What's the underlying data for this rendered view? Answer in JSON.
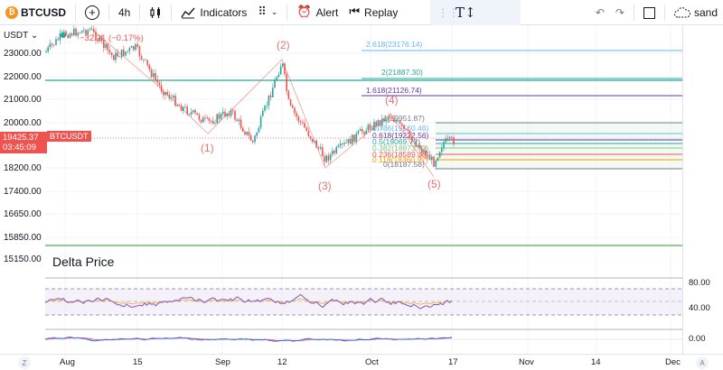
{
  "toolbar": {
    "symbol": "BTCUSD",
    "symbol_icon_letter": "₿",
    "interval": "4h",
    "indicators_label": "Indicators",
    "alert_label": "Alert",
    "replay_label": "Replay",
    "user_label": "sand"
  },
  "price_scale": {
    "currency": "USDT",
    "labels": [
      "23000.00",
      "22000.00",
      "21000.00",
      "20000.00",
      "18200.00",
      "17400.00",
      "16650.00",
      "15850.00",
      "15150.00"
    ],
    "current_price": "19425.37",
    "countdown": "03:45:09",
    "ticker_badge": "BTCUSDT"
  },
  "rsi_scale": {
    "top": "80.00",
    "mid": "40.00"
  },
  "macd_scale": {
    "zero": "0.00"
  },
  "chart": {
    "title": "Delta Price",
    "change_label": "−32.21 (−0.17%)",
    "wave_labels": [
      "(1)",
      "(2)",
      "(3)",
      "(4)",
      "(5)"
    ],
    "fib_labels": [
      {
        "text": "2.618(23176.14)",
        "color": "#64b5f6"
      },
      {
        "text": "2(21887.30)",
        "color": "#26a69a"
      },
      {
        "text": "1.618(21126.74)",
        "color": "#5e35b1"
      },
      {
        "text": "1(19951.87)",
        "color": "#787b86"
      },
      {
        "text": "0.786(19560.46)",
        "color": "#64b5f6"
      },
      {
        "text": "0.618(19222.56)",
        "color": "#5e35b1"
      },
      {
        "text": "0.5(19069.72)",
        "color": "#26a69a"
      },
      {
        "text": "0.382(18873.03)",
        "color": "#81c784"
      },
      {
        "text": "0.236(18589.38)",
        "color": "#ef5350"
      },
      {
        "text": "0.118(18360.97)",
        "color": "#ff9800"
      },
      {
        "text": "0(18187.58)",
        "color": "#787b86"
      }
    ]
  },
  "time_axis": {
    "labels": [
      "Aug",
      "15",
      "Sep",
      "12",
      "Oct",
      "17",
      "Nov",
      "14",
      "Dec"
    ],
    "left_corner": "Z",
    "right_corner": "A"
  },
  "colors": {
    "up": "#26a69a",
    "down": "#ef5350",
    "accent": "#2962ff",
    "wave": "#e57373",
    "rsi": "#7e57c2"
  }
}
